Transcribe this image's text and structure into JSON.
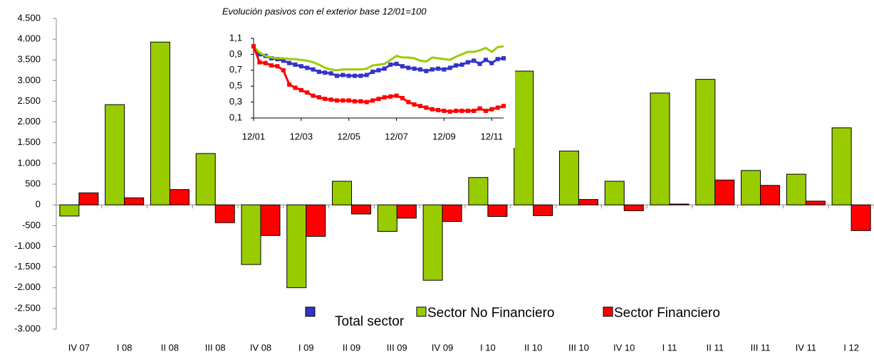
{
  "chart_data": [
    {
      "type": "bar",
      "categories": [
        "IV  07",
        "I  08",
        "II  08",
        "III  08",
        "IV  08",
        "I 09",
        "II 09",
        "III  09",
        "IV  09",
        "I 10",
        "II 10",
        "III 10",
        "IV 10",
        "I 11",
        "II 11",
        "III 11",
        "IV 11",
        "I 12"
      ],
      "series": [
        {
          "color": "#99cc00",
          "values": [
            -270,
            2420,
            3930,
            1240,
            -1440,
            -2000,
            570,
            -640,
            -1820,
            660,
            3230,
            1300,
            570,
            2700,
            3030,
            830,
            740,
            1860
          ]
        },
        {
          "color": "#ff0000",
          "values": [
            290,
            170,
            370,
            -430,
            -740,
            -760,
            -220,
            -320,
            -400,
            -280,
            -260,
            130,
            -140,
            20,
            600,
            470,
            90,
            -620
          ]
        }
      ],
      "ylim": [
        -3000,
        4500
      ],
      "yticks": [
        {
          "value": -3000,
          "label": "-3.000"
        },
        {
          "value": -2500,
          "label": "-2.500"
        },
        {
          "value": -2000,
          "label": "-2.000"
        },
        {
          "value": -1500,
          "label": "-1.500"
        },
        {
          "value": -1000,
          "label": "-1.000"
        },
        -500,
        0,
        500,
        {
          "value": 1000,
          "label": "1.000"
        },
        {
          "value": 1500,
          "label": "1.500"
        },
        {
          "value": 2000,
          "label": "2.000"
        },
        {
          "value": 2500,
          "label": "2.500"
        },
        {
          "value": 3000,
          "label": "3.000"
        },
        {
          "value": 3500,
          "label": "3.500"
        },
        {
          "value": 4000,
          "label": "4.000"
        },
        {
          "value": 4500,
          "label": "4.500"
        }
      ],
      "grid": false
    },
    {
      "type": "line",
      "title": "Evolución pasivos con el exterior base 12/01=100",
      "x": [
        0,
        3,
        6,
        9,
        12,
        15,
        18,
        21,
        24,
        27,
        30,
        33,
        36,
        39,
        42,
        45,
        48,
        51,
        54,
        57,
        60,
        63,
        66,
        69,
        72,
        75,
        78,
        81,
        84,
        87,
        90,
        93,
        96,
        99,
        102,
        105,
        108,
        111,
        114,
        117,
        120,
        123,
        126
      ],
      "series": [
        {
          "name": "Total sector",
          "color": "#3333cc",
          "markers": true,
          "values": [
            1.0,
            0.9,
            0.88,
            0.85,
            0.84,
            0.82,
            0.79,
            0.77,
            0.75,
            0.73,
            0.71,
            0.68,
            0.67,
            0.66,
            0.63,
            0.64,
            0.63,
            0.63,
            0.63,
            0.64,
            0.68,
            0.7,
            0.72,
            0.77,
            0.78,
            0.75,
            0.73,
            0.72,
            0.71,
            0.69,
            0.71,
            0.72,
            0.71,
            0.73,
            0.76,
            0.77,
            0.8,
            0.82,
            0.78,
            0.83,
            0.79,
            0.84,
            0.85
          ]
        },
        {
          "name": "Sector No Financiero",
          "color": "#99cc00",
          "markers": false,
          "values": [
            1.0,
            0.92,
            0.88,
            0.86,
            0.85,
            0.85,
            0.84,
            0.84,
            0.83,
            0.82,
            0.8,
            0.77,
            0.73,
            0.71,
            0.7,
            0.71,
            0.71,
            0.71,
            0.71,
            0.72,
            0.76,
            0.77,
            0.78,
            0.83,
            0.88,
            0.86,
            0.86,
            0.85,
            0.82,
            0.81,
            0.86,
            0.85,
            0.84,
            0.83,
            0.87,
            0.9,
            0.93,
            0.93,
            0.95,
            0.98,
            0.93,
            0.99,
            1.0
          ]
        },
        {
          "name": "Sector Financiero",
          "color": "#ff0000",
          "markers": true,
          "values": [
            1.0,
            0.8,
            0.79,
            0.76,
            0.75,
            0.7,
            0.52,
            0.48,
            0.45,
            0.42,
            0.38,
            0.36,
            0.34,
            0.33,
            0.32,
            0.32,
            0.32,
            0.31,
            0.31,
            0.3,
            0.32,
            0.34,
            0.36,
            0.37,
            0.38,
            0.35,
            0.3,
            0.27,
            0.25,
            0.23,
            0.21,
            0.2,
            0.19,
            0.18,
            0.19,
            0.19,
            0.19,
            0.19,
            0.22,
            0.19,
            0.21,
            0.23,
            0.25
          ]
        }
      ],
      "xlim": [
        0,
        126
      ],
      "xticks": [
        {
          "value": 0,
          "label": "12/01"
        },
        {
          "value": 24,
          "label": "12/03"
        },
        {
          "value": 48,
          "label": "12/05"
        },
        {
          "value": 72,
          "label": "12/07"
        },
        {
          "value": 96,
          "label": "12/09"
        },
        {
          "value": 120,
          "label": "12/11"
        }
      ],
      "ylim": [
        0.1,
        1.1
      ],
      "yticks": [
        {
          "value": 0.1,
          "label": "0,1"
        },
        {
          "value": 0.3,
          "label": "0,3"
        },
        {
          "value": 0.5,
          "label": "0,5"
        },
        {
          "value": 0.7,
          "label": "0,7"
        },
        {
          "value": 0.9,
          "label": "0,9"
        },
        {
          "value": 1.1,
          "label": "1,1"
        }
      ]
    }
  ]
}
